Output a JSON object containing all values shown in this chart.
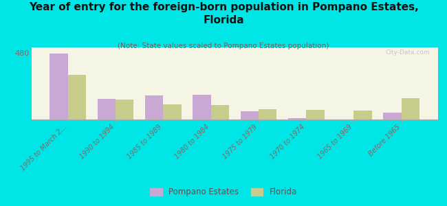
{
  "title": "Year of entry for the foreign-born population in Pompano Estates,\nFlorida",
  "subtitle": "(Note: State values scaled to Pompano Estates population)",
  "categories": [
    "1995 to March 2...",
    "1990 to 1994",
    "1985 to 1989",
    "1980 to 1984",
    "1975 to 1979",
    "1970 to 1974",
    "1965 to 1969",
    "Before 1965"
  ],
  "pompano_values": [
    475,
    150,
    175,
    180,
    60,
    10,
    0,
    50
  ],
  "florida_values": [
    320,
    145,
    110,
    105,
    75,
    70,
    65,
    155
  ],
  "pompano_color": "#c9a8d4",
  "florida_color": "#c8cc8a",
  "background_color": "#00e5e5",
  "plot_bg_color": "#f5f5e6",
  "ylim": [
    0,
    520
  ],
  "yticks": [
    0,
    480
  ],
  "bar_width": 0.38,
  "title_fontsize": 11,
  "subtitle_fontsize": 7.5,
  "tick_label_color": "#886666",
  "watermark": "City-Data.com",
  "legend_labels": [
    "Pompano Estates",
    "Florida"
  ]
}
